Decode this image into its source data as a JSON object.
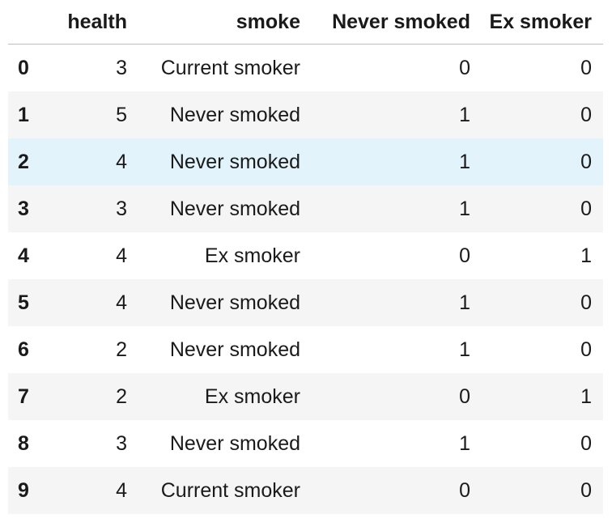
{
  "table": {
    "columns": {
      "index": "",
      "health": "health",
      "smoke": "smoke",
      "never_smoked": "Never smoked",
      "ex_smoker": "Ex smoker"
    },
    "rows": [
      {
        "index": "0",
        "health": "3",
        "smoke": "Current smoker",
        "never_smoked": "0",
        "ex_smoker": "0"
      },
      {
        "index": "1",
        "health": "5",
        "smoke": "Never smoked",
        "never_smoked": "1",
        "ex_smoker": "0"
      },
      {
        "index": "2",
        "health": "4",
        "smoke": "Never smoked",
        "never_smoked": "1",
        "ex_smoker": "0"
      },
      {
        "index": "3",
        "health": "3",
        "smoke": "Never smoked",
        "never_smoked": "1",
        "ex_smoker": "0"
      },
      {
        "index": "4",
        "health": "4",
        "smoke": "Ex smoker",
        "never_smoked": "0",
        "ex_smoker": "1"
      },
      {
        "index": "5",
        "health": "4",
        "smoke": "Never smoked",
        "never_smoked": "1",
        "ex_smoker": "0"
      },
      {
        "index": "6",
        "health": "2",
        "smoke": "Never smoked",
        "never_smoked": "1",
        "ex_smoker": "0"
      },
      {
        "index": "7",
        "health": "2",
        "smoke": "Ex smoker",
        "never_smoked": "0",
        "ex_smoker": "1"
      },
      {
        "index": "8",
        "health": "3",
        "smoke": "Never smoked",
        "never_smoked": "1",
        "ex_smoker": "0"
      },
      {
        "index": "9",
        "health": "4",
        "smoke": "Current smoker",
        "never_smoked": "0",
        "ex_smoker": "0"
      }
    ],
    "highlighted_row": 2
  },
  "colors": {
    "row_hover": "#e3f3fb",
    "row_stripe": "#f5f5f5",
    "header_rule": "#bdbdbd"
  }
}
